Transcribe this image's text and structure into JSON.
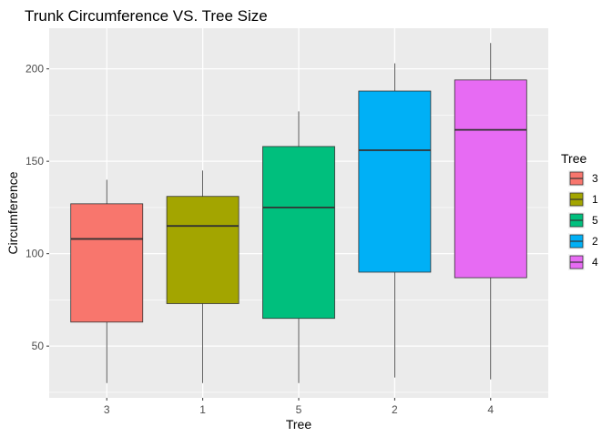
{
  "chart_data": {
    "type": "boxplot",
    "title": "Trunk Circumference VS. Tree Size",
    "xlabel": "Tree",
    "ylabel": "Circumference",
    "ylim": [
      22,
      222
    ],
    "yticks": [
      50,
      100,
      150,
      200
    ],
    "grid": true,
    "legend": {
      "title": "Tree",
      "position": "right"
    },
    "categories": [
      "3",
      "1",
      "5",
      "2",
      "4"
    ],
    "boxes": [
      {
        "category": "3",
        "min": 30,
        "q1": 63,
        "median": 108,
        "q3": 127,
        "max": 140,
        "color": "#F8766D"
      },
      {
        "category": "1",
        "min": 30,
        "q1": 73,
        "median": 115,
        "q3": 131,
        "max": 145,
        "color": "#A3A500"
      },
      {
        "category": "5",
        "min": 30,
        "q1": 65,
        "median": 125,
        "q3": 158,
        "max": 177,
        "color": "#00BF7D"
      },
      {
        "category": "2",
        "min": 33,
        "q1": 90,
        "median": 156,
        "q3": 188,
        "max": 203,
        "color": "#00B0F6"
      },
      {
        "category": "4",
        "min": 32,
        "q1": 87,
        "median": 167,
        "q3": 194,
        "max": 214,
        "color": "#E76BF3"
      }
    ]
  }
}
